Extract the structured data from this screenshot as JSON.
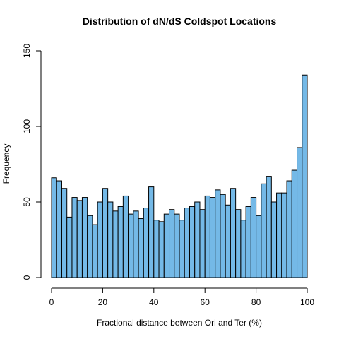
{
  "chart_data": {
    "type": "bar",
    "title": "Distribution of dN/dS Coldspot Locations",
    "xlabel": "Fractional distance between Ori and Ter (%)",
    "ylabel": "Frequency",
    "bin_width": 2,
    "x": [
      1,
      3,
      5,
      7,
      9,
      11,
      13,
      15,
      17,
      19,
      21,
      23,
      25,
      27,
      29,
      31,
      33,
      35,
      37,
      39,
      41,
      43,
      45,
      47,
      49,
      51,
      53,
      55,
      57,
      59,
      61,
      63,
      65,
      67,
      69,
      71,
      73,
      75,
      77,
      79,
      81,
      83,
      85,
      87,
      89,
      91,
      93,
      95,
      97,
      99
    ],
    "values": [
      66,
      64,
      59,
      40,
      53,
      51,
      53,
      41,
      35,
      50,
      59,
      50,
      44,
      47,
      54,
      42,
      44,
      39,
      46,
      60,
      38,
      37,
      42,
      45,
      42,
      38,
      46,
      47,
      50,
      45,
      54,
      53,
      58,
      55,
      48,
      59,
      45,
      38,
      47,
      53,
      41,
      62,
      67,
      50,
      56,
      56,
      64,
      71,
      86,
      134
    ],
    "xlim": [
      0,
      100
    ],
    "ylim": [
      0,
      150
    ],
    "xticks": [
      0,
      20,
      40,
      60,
      80,
      100
    ],
    "yticks": [
      0,
      50,
      100,
      150
    ],
    "bar_color": "#74b9e7",
    "grid": false,
    "legend": "none"
  }
}
